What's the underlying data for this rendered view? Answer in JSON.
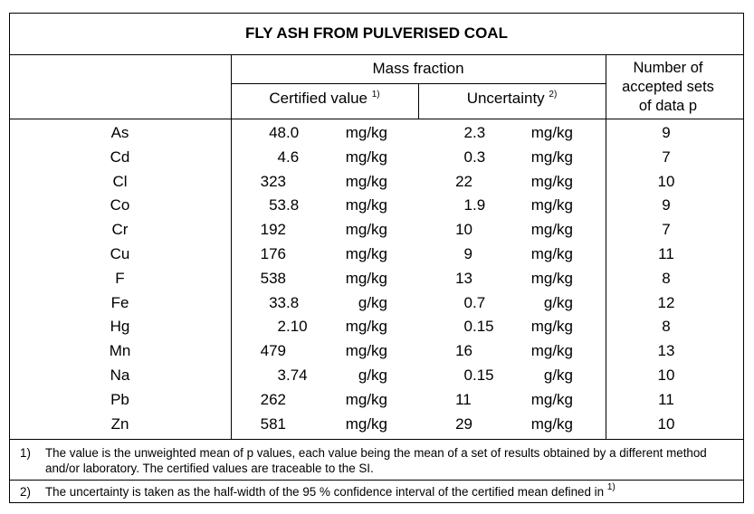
{
  "title": "FLY ASH FROM PULVERISED COAL",
  "header": {
    "mass_fraction": "Mass fraction",
    "certified_value": "Certified value",
    "certified_note": "1)",
    "uncertainty": "Uncertainty",
    "uncertainty_note": "2)",
    "number_of_sets": "Number of accepted sets of data p"
  },
  "table": {
    "rows": [
      [
        "As",
        "48.0",
        "mg/kg",
        "2.3",
        "mg/kg",
        "9"
      ],
      [
        "Cd",
        "4.6",
        "mg/kg",
        "0.3",
        "mg/kg",
        "7"
      ],
      [
        "Cl",
        "323",
        "mg/kg",
        "22",
        "mg/kg",
        "10"
      ],
      [
        "Co",
        "53.8",
        "mg/kg",
        "1.9",
        "mg/kg",
        "9"
      ],
      [
        "Cr",
        "192",
        "mg/kg",
        "10",
        "mg/kg",
        "7"
      ],
      [
        "Cu",
        "176",
        "mg/kg",
        "9",
        "mg/kg",
        "11"
      ],
      [
        "F",
        "538",
        "mg/kg",
        "13",
        "mg/kg",
        "8"
      ],
      [
        "Fe",
        "33.8",
        "g/kg",
        "0.7",
        "g/kg",
        "12"
      ],
      [
        "Hg",
        "2.10",
        "mg/kg",
        "0.15",
        "mg/kg",
        "8"
      ],
      [
        "Mn",
        "479",
        "mg/kg",
        "16",
        "mg/kg",
        "13"
      ],
      [
        "Na",
        "3.74",
        "g/kg",
        "0.15",
        "g/kg",
        "10"
      ],
      [
        "Pb",
        "262",
        "mg/kg",
        "11",
        "mg/kg",
        "11"
      ],
      [
        "Zn",
        "581",
        "mg/kg",
        "29",
        "mg/kg",
        "10"
      ]
    ]
  },
  "footnotes": [
    {
      "marker": "1)",
      "text": "The value is the unweighted mean of p values, each value being the mean of a set of results obtained by a different method and/or laboratory. The certified values are traceable to the SI."
    },
    {
      "marker": "2)",
      "text": "The uncertainty is taken as the half-width of the 95 % confidence interval of the certified mean defined in",
      "ref": "1)"
    }
  ]
}
